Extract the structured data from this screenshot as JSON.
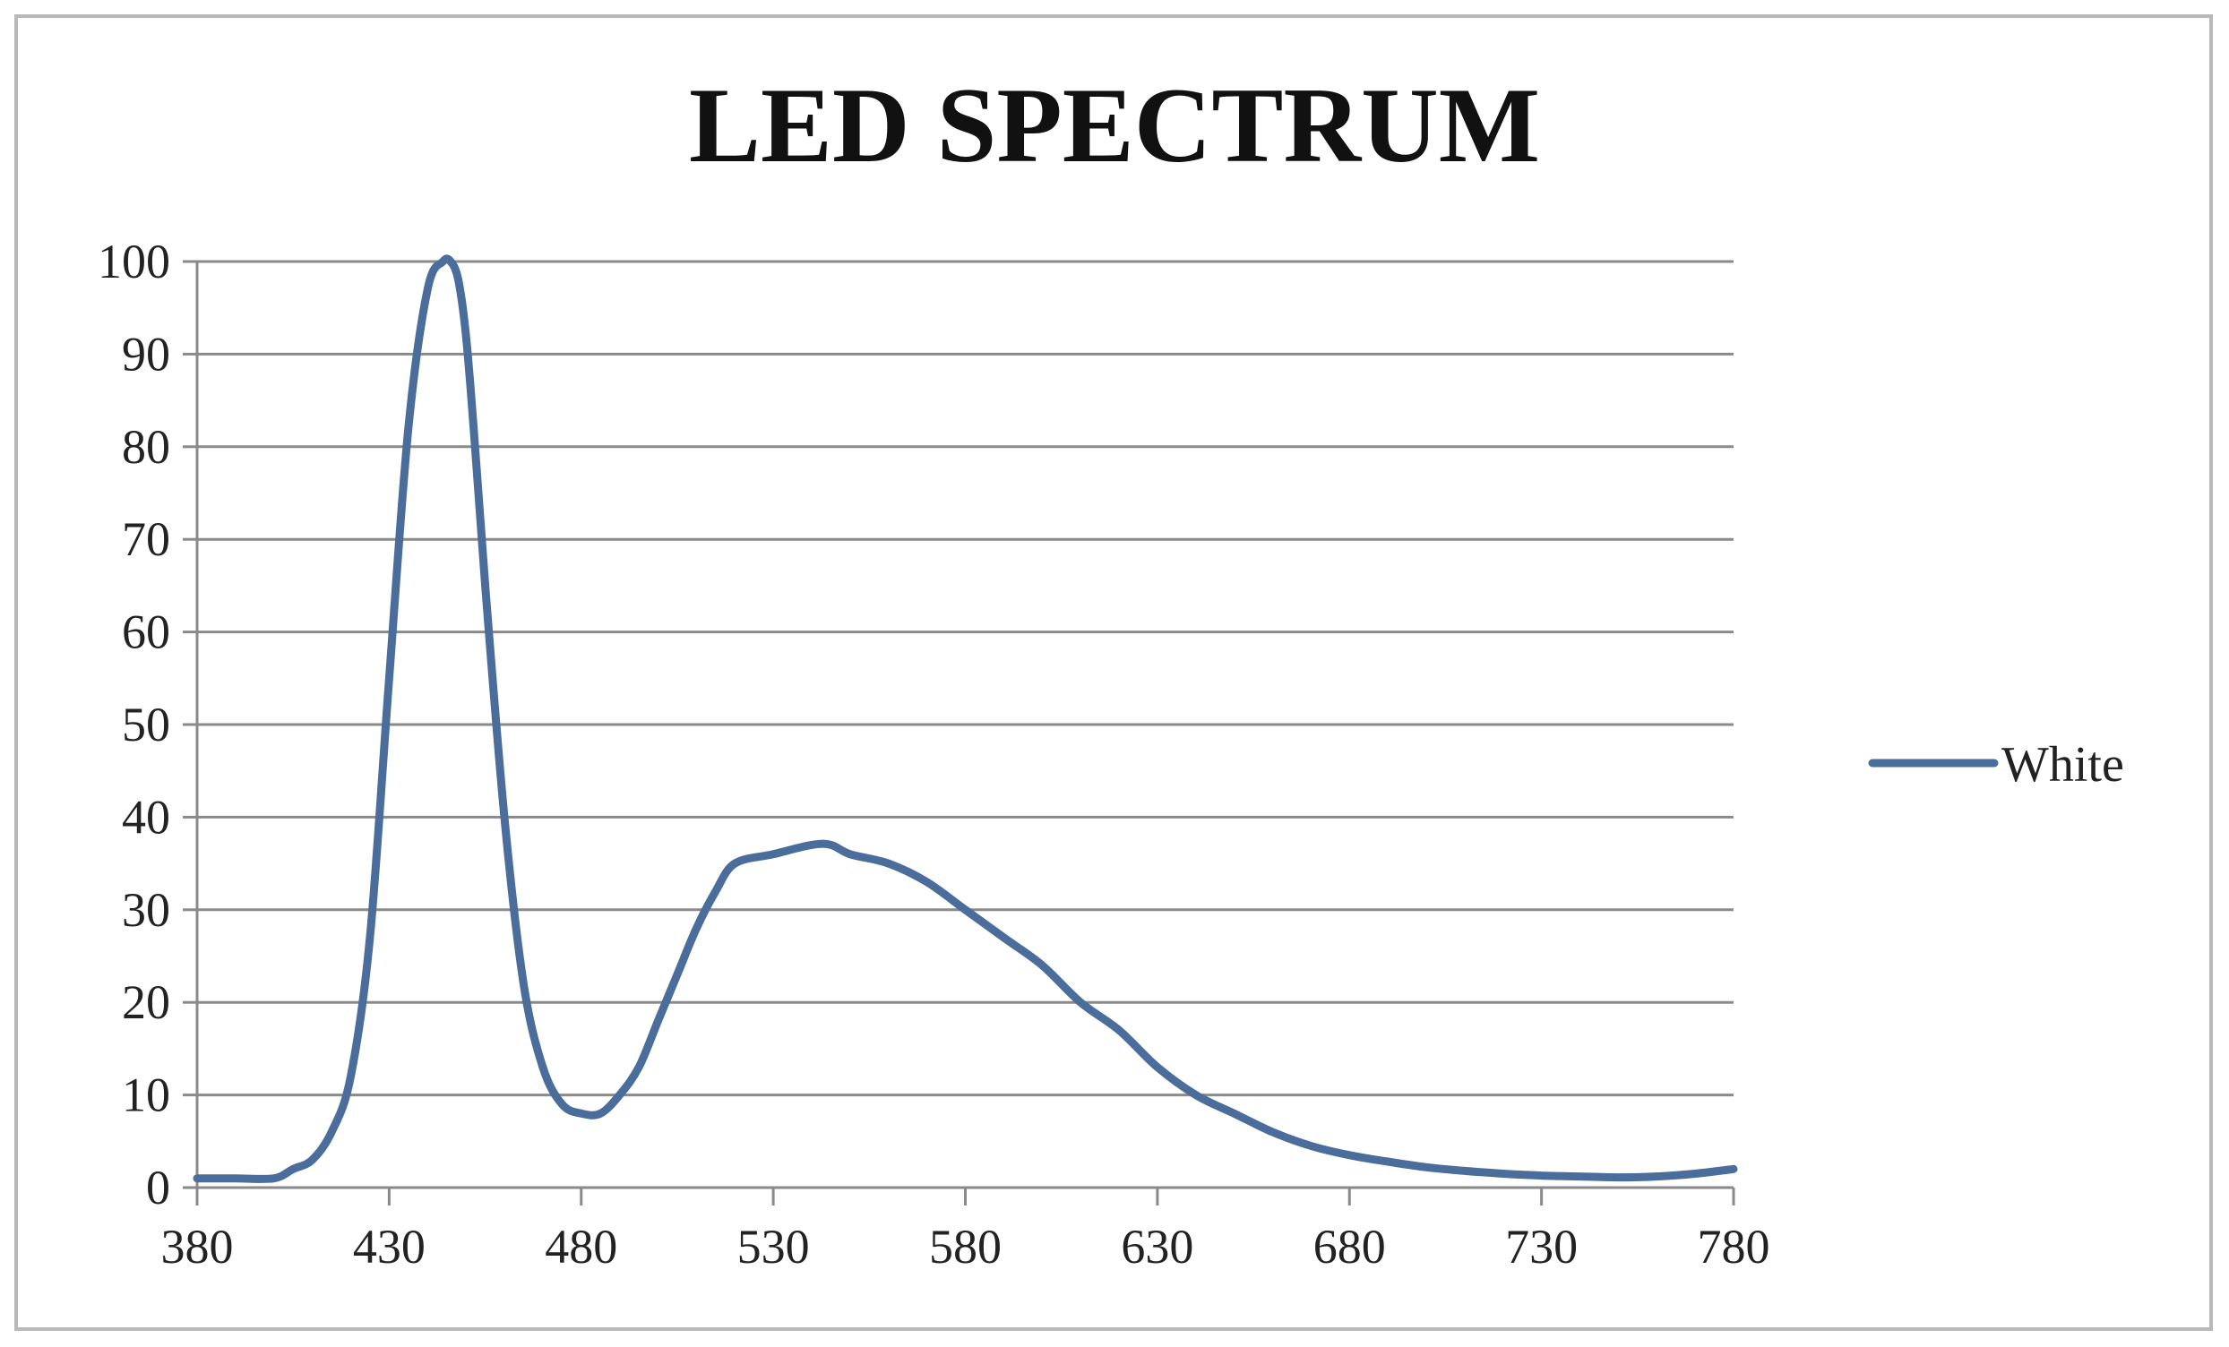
{
  "chart_data": {
    "type": "line",
    "title": "LED SPECTRUM",
    "xlabel": "",
    "ylabel": "",
    "xlim": [
      380,
      780
    ],
    "ylim": [
      0,
      100
    ],
    "x_ticks": [
      380,
      430,
      480,
      530,
      580,
      630,
      680,
      730,
      780
    ],
    "y_ticks": [
      0,
      10,
      20,
      30,
      40,
      50,
      60,
      70,
      80,
      90,
      100
    ],
    "grid": "horizontal",
    "legend_position": "right",
    "series": [
      {
        "name": "White",
        "color": "#4a6d9c",
        "x": [
          380,
          390,
          400,
          405,
          410,
          415,
          420,
          425,
          430,
          435,
          440,
          444,
          446,
          448,
          450,
          452,
          455,
          460,
          465,
          470,
          475,
          480,
          485,
          490,
          495,
          500,
          505,
          510,
          515,
          520,
          530,
          540,
          545,
          550,
          560,
          570,
          580,
          590,
          600,
          610,
          620,
          630,
          640,
          650,
          660,
          670,
          680,
          690,
          700,
          710,
          720,
          730,
          740,
          750,
          760,
          770,
          780
        ],
        "y": [
          1,
          1,
          1,
          2,
          3,
          6,
          12,
          27,
          55,
          82,
          97,
          100,
          100,
          98,
          92,
          82,
          65,
          40,
          22,
          13,
          9,
          8,
          8,
          10,
          13,
          18,
          23,
          28,
          32,
          35,
          36,
          37,
          37,
          36,
          35,
          33,
          30,
          27,
          24,
          20,
          17,
          13,
          10,
          8,
          6,
          4.5,
          3.5,
          2.8,
          2.2,
          1.8,
          1.5,
          1.3,
          1.2,
          1.1,
          1.2,
          1.5,
          2
        ]
      }
    ]
  }
}
